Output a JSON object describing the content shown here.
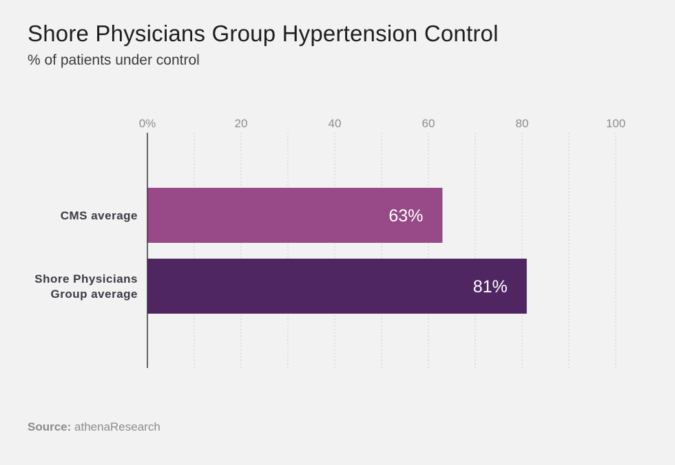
{
  "header": {
    "title": "Shore Physicians Group Hypertension Control",
    "subtitle": "% of patients under control"
  },
  "footer": {
    "source_label": "Source:",
    "source_value": "athenaResearch"
  },
  "colors": {
    "background": "#f2f2f2",
    "bar_cms": "#974a87",
    "bar_shore": "#4f2662",
    "axis_line": "#333333",
    "grid": "#cccccc",
    "tick_text": "#8c8c8c",
    "category_text": "#3a3a44"
  },
  "chart_data": {
    "type": "bar",
    "orientation": "horizontal",
    "categories": [
      [
        "CMS average"
      ],
      [
        "Shore Physicians",
        "Group average"
      ]
    ],
    "values": [
      63,
      81
    ],
    "data_labels": [
      "63%",
      "81%"
    ],
    "bar_colors": [
      "#974a87",
      "#4f2662"
    ],
    "xlim": [
      0,
      100
    ],
    "xticks": [
      0,
      20,
      40,
      60,
      80,
      100
    ],
    "xtick_labels": [
      "0%",
      "20",
      "40",
      "60",
      "80",
      "100"
    ],
    "xaxis_position": "top",
    "grid": true
  }
}
